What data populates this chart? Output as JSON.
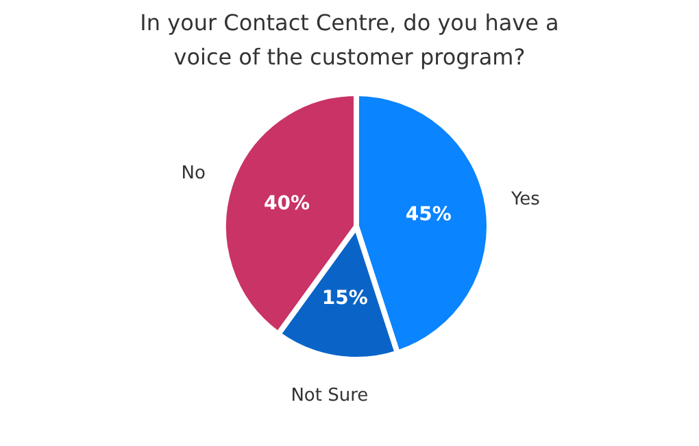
{
  "chart_data": {
    "type": "pie",
    "title": "In your Contact Centre, do you have a voice of the customer program?",
    "categories": [
      "Yes",
      "Not Sure",
      "No"
    ],
    "values": [
      45,
      15,
      40
    ],
    "colors": [
      "#0a84ff",
      "#0a64c8",
      "#c93366"
    ],
    "value_labels": [
      "45%",
      "15%",
      "40%"
    ]
  }
}
